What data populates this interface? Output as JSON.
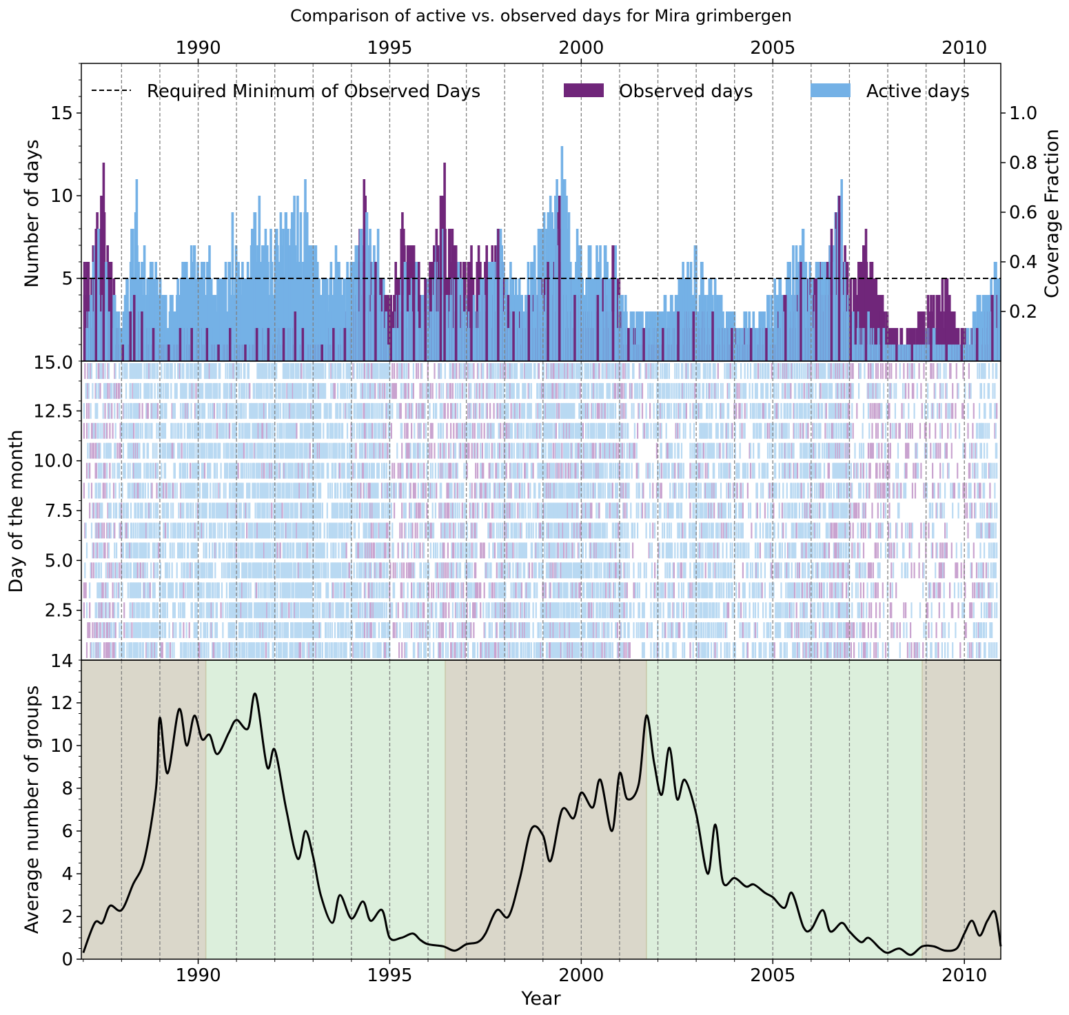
{
  "chart_data": {
    "title": "Comparison of active vs. observed days for Mira grimbergen",
    "x_range": [
      1986.95,
      2010.95
    ],
    "year_ticks": [
      1990,
      1995,
      2000,
      2005,
      2010
    ],
    "year_tick_labels": [
      "1990",
      "1995",
      "2000",
      "2005",
      "2010"
    ],
    "grid": "vertical dashed lines every year",
    "colors": {
      "observed": "#70267a",
      "active": "#74b1e6",
      "threshold": "#000000",
      "shade_brown": "#dad7ca",
      "shade_green": "#dcefdc",
      "curve": "#000000"
    },
    "panels": [
      {
        "type": "bar",
        "ylabel": "Number of days",
        "ylabel_right": "Coverage Fraction",
        "ylim": [
          0,
          18
        ],
        "yticks": [
          5,
          10,
          15
        ],
        "ytick_labels": [
          "5",
          "10",
          "15"
        ],
        "right_ylim": [
          0,
          1.2
        ],
        "right_yticks": [
          0.2,
          0.4,
          0.6,
          0.8,
          1.0
        ],
        "right_ytick_labels": [
          "0.2",
          "0.4",
          "0.6",
          "0.8",
          "1.0"
        ],
        "threshold": 5,
        "legend_position": "top",
        "legend": {
          "threshold": "Required Minimum of Observed Days",
          "observed": "Observed days",
          "active": "Active days"
        },
        "monthly_samples": [
          {
            "x": 1987.0,
            "active": 2,
            "observed": 6
          },
          {
            "x": 1987.3,
            "active": 8,
            "observed": 8
          },
          {
            "x": 1987.5,
            "active": 6,
            "observed": 12
          },
          {
            "x": 1987.7,
            "active": 4,
            "observed": 6
          },
          {
            "x": 1988.0,
            "active": 3,
            "observed": 1
          },
          {
            "x": 1988.2,
            "active": 8,
            "observed": 3
          },
          {
            "x": 1988.3,
            "active": 11,
            "observed": 4
          },
          {
            "x": 1988.5,
            "active": 7,
            "observed": 3
          },
          {
            "x": 1988.8,
            "active": 6,
            "observed": 2
          },
          {
            "x": 1989.2,
            "active": 4,
            "observed": 1
          },
          {
            "x": 1989.5,
            "active": 6,
            "observed": 2
          },
          {
            "x": 1989.8,
            "active": 7,
            "observed": 2
          },
          {
            "x": 1990.2,
            "active": 7,
            "observed": 2
          },
          {
            "x": 1990.5,
            "active": 5,
            "observed": 1
          },
          {
            "x": 1990.8,
            "active": 9,
            "observed": 2
          },
          {
            "x": 1991.2,
            "active": 6,
            "observed": 1
          },
          {
            "x": 1991.5,
            "active": 10,
            "observed": 2
          },
          {
            "x": 1991.8,
            "active": 8,
            "observed": 2
          },
          {
            "x": 1992.2,
            "active": 9,
            "observed": 2
          },
          {
            "x": 1992.5,
            "active": 10,
            "observed": 3
          },
          {
            "x": 1992.7,
            "active": 11,
            "observed": 2
          },
          {
            "x": 1993.2,
            "active": 5,
            "observed": 1
          },
          {
            "x": 1993.5,
            "active": 7,
            "observed": 2
          },
          {
            "x": 1993.8,
            "active": 6,
            "observed": 2
          },
          {
            "x": 1994.3,
            "active": 9,
            "observed": 11
          },
          {
            "x": 1994.6,
            "active": 8,
            "observed": 6
          },
          {
            "x": 1995.0,
            "active": 2,
            "observed": 4
          },
          {
            "x": 1995.3,
            "active": 6,
            "observed": 9
          },
          {
            "x": 1995.6,
            "active": 6,
            "observed": 7
          },
          {
            "x": 1995.9,
            "active": 4,
            "observed": 5
          },
          {
            "x": 1996.3,
            "active": 8,
            "observed": 10
          },
          {
            "x": 1996.4,
            "active": 4,
            "observed": 12
          },
          {
            "x": 1996.7,
            "active": 6,
            "observed": 7
          },
          {
            "x": 1997.1,
            "active": 4,
            "observed": 7
          },
          {
            "x": 1997.5,
            "active": 6,
            "observed": 7
          },
          {
            "x": 1997.8,
            "active": 8,
            "observed": 8
          },
          {
            "x": 1998.2,
            "active": 5,
            "observed": 3
          },
          {
            "x": 1998.6,
            "active": 6,
            "observed": 4
          },
          {
            "x": 1999.1,
            "active": 10,
            "observed": 6
          },
          {
            "x": 1999.4,
            "active": 13,
            "observed": 10
          },
          {
            "x": 1999.8,
            "active": 8,
            "observed": 4
          },
          {
            "x": 2000.4,
            "active": 7,
            "observed": 4
          },
          {
            "x": 2000.8,
            "active": 7,
            "observed": 7
          },
          {
            "x": 2001.2,
            "active": 3,
            "observed": 2
          },
          {
            "x": 2001.6,
            "active": 3,
            "observed": 2
          },
          {
            "x": 2002.1,
            "active": 4,
            "observed": 2
          },
          {
            "x": 2002.5,
            "active": 5,
            "observed": 3
          },
          {
            "x": 2002.9,
            "active": 7,
            "observed": 3
          },
          {
            "x": 2003.4,
            "active": 5,
            "observed": 3
          },
          {
            "x": 2003.9,
            "active": 3,
            "observed": 2
          },
          {
            "x": 2004.4,
            "active": 3,
            "observed": 2
          },
          {
            "x": 2004.8,
            "active": 4,
            "observed": 2
          },
          {
            "x": 2005.3,
            "active": 6,
            "observed": 4
          },
          {
            "x": 2005.7,
            "active": 8,
            "observed": 6
          },
          {
            "x": 2006.1,
            "active": 6,
            "observed": 5
          },
          {
            "x": 2006.5,
            "active": 7,
            "observed": 8
          },
          {
            "x": 2006.7,
            "active": 11,
            "observed": 10
          },
          {
            "x": 2007.0,
            "active": 3,
            "observed": 5
          },
          {
            "x": 2007.4,
            "active": 3,
            "observed": 8
          },
          {
            "x": 2007.8,
            "active": 2,
            "observed": 4
          },
          {
            "x": 2008.2,
            "active": 1,
            "observed": 2
          },
          {
            "x": 2008.6,
            "active": 1,
            "observed": 2
          },
          {
            "x": 2009.1,
            "active": 2,
            "observed": 4
          },
          {
            "x": 2009.5,
            "active": 1,
            "observed": 5
          },
          {
            "x": 2009.9,
            "active": 1,
            "observed": 2
          },
          {
            "x": 2010.3,
            "active": 4,
            "observed": 2
          },
          {
            "x": 2010.7,
            "active": 6,
            "observed": 4
          }
        ]
      },
      {
        "type": "heatmap",
        "ylabel": "Day of the month",
        "ylim": [
          0,
          15
        ],
        "yticks": [
          2.5,
          5.0,
          7.5,
          10.0,
          12.5
        ],
        "ytick_labels": [
          "2.5",
          "5.0",
          "7.5",
          "10.0",
          "12.5"
        ],
        "top_label": "15.0"
      },
      {
        "type": "line",
        "ylabel": "Average number of groups",
        "xlabel": "Year",
        "ylim": [
          0,
          14
        ],
        "yticks": [
          0,
          2,
          4,
          6,
          8,
          10,
          12
        ],
        "ytick_labels": [
          "0",
          "2",
          "4",
          "6",
          "8",
          "10",
          "12"
        ],
        "top_label": "14",
        "shaded_intervals": [
          {
            "from": 1986.95,
            "to": 1990.2,
            "color": "brown"
          },
          {
            "from": 1990.2,
            "to": 1996.45,
            "color": "green"
          },
          {
            "from": 1996.45,
            "to": 2001.7,
            "color": "brown"
          },
          {
            "from": 2001.7,
            "to": 2008.9,
            "color": "green"
          },
          {
            "from": 2008.9,
            "to": 2010.95,
            "color": "brown"
          }
        ],
        "x": [
          1987.0,
          1987.3,
          1987.5,
          1987.7,
          1988.0,
          1988.3,
          1988.6,
          1988.9,
          1989.0,
          1989.2,
          1989.5,
          1989.7,
          1989.9,
          1990.1,
          1990.3,
          1990.5,
          1990.8,
          1991.0,
          1991.3,
          1991.5,
          1991.8,
          1992.0,
          1992.3,
          1992.6,
          1992.8,
          1993.0,
          1993.2,
          1993.5,
          1993.7,
          1994.0,
          1994.3,
          1994.5,
          1994.8,
          1995.0,
          1995.3,
          1995.6,
          1995.8,
          1996.0,
          1996.4,
          1996.7,
          1997.0,
          1997.3,
          1997.5,
          1997.8,
          1998.1,
          1998.4,
          1998.7,
          1999.0,
          1999.2,
          1999.5,
          1999.8,
          2000.0,
          2000.3,
          2000.5,
          2000.8,
          2001.0,
          2001.2,
          2001.5,
          2001.7,
          2001.9,
          2002.1,
          2002.3,
          2002.5,
          2002.7,
          2003.0,
          2003.3,
          2003.5,
          2003.7,
          2004.0,
          2004.3,
          2004.5,
          2004.8,
          2005.0,
          2005.3,
          2005.5,
          2005.8,
          2006.0,
          2006.3,
          2006.5,
          2006.8,
          2007.0,
          2007.3,
          2007.5,
          2007.8,
          2008.0,
          2008.3,
          2008.6,
          2008.9,
          2009.2,
          2009.5,
          2009.8,
          2010.0,
          2010.2,
          2010.4,
          2010.6,
          2010.8,
          2010.95
        ],
        "y": [
          0.3,
          1.7,
          1.7,
          2.5,
          2.3,
          3.5,
          4.7,
          8.0,
          11.3,
          8.7,
          11.7,
          10.0,
          11.4,
          10.3,
          10.5,
          9.6,
          10.6,
          11.2,
          10.8,
          12.4,
          9.0,
          9.8,
          7.0,
          4.7,
          6.0,
          4.8,
          3.0,
          1.7,
          3.0,
          1.9,
          2.7,
          1.8,
          2.3,
          1.0,
          1.0,
          1.2,
          0.9,
          0.7,
          0.6,
          0.4,
          0.7,
          0.8,
          1.2,
          2.3,
          2.0,
          3.8,
          6.1,
          5.8,
          4.6,
          7.0,
          6.6,
          7.8,
          7.1,
          8.4,
          6.0,
          8.7,
          7.5,
          8.2,
          11.4,
          9.2,
          7.7,
          9.9,
          7.5,
          8.4,
          6.8,
          4.0,
          6.3,
          3.6,
          3.8,
          3.4,
          3.5,
          3.1,
          2.9,
          2.4,
          3.1,
          1.5,
          1.4,
          2.3,
          1.3,
          1.7,
          1.3,
          0.8,
          1.0,
          0.5,
          0.3,
          0.5,
          0.2,
          0.6,
          0.6,
          0.4,
          0.5,
          1.2,
          1.8,
          1.1,
          1.8,
          2.2,
          0.6
        ]
      }
    ]
  }
}
